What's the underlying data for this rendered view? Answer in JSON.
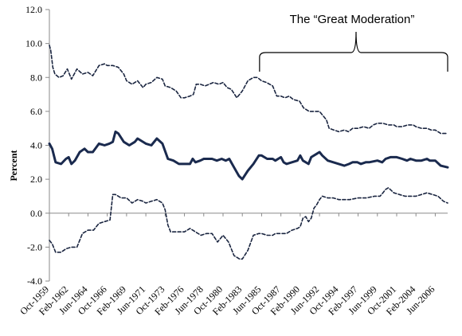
{
  "chart_data": {
    "type": "line",
    "ylabel": "Percent",
    "ylim": [
      -4.0,
      12.0
    ],
    "yticks": [
      "-4.0",
      "-2.0",
      "0.0",
      "2.0",
      "4.0",
      "6.0",
      "8.0",
      "10.0",
      "12.0"
    ],
    "xlim": [
      "Oct-1959",
      "Dec-2007"
    ],
    "xticks": [
      "Oct-1959",
      "Feb-1962",
      "Jun-1964",
      "Oct-1966",
      "Feb-1969",
      "Jun-1971",
      "Oct-1973",
      "Feb-1976",
      "Jun-1978",
      "Oct-1980",
      "Feb-1983",
      "Jun-1985",
      "Oct-1987",
      "Feb-1990",
      "Jun-1992",
      "Oct-1994",
      "Feb-1997",
      "Jun-1999",
      "Oct-2001",
      "Feb-2004",
      "Jun-2006"
    ],
    "grid": false,
    "annotation": {
      "text": "The “Great Moderation”",
      "span": [
        "Mar-1985",
        "Dec-2007"
      ]
    },
    "series": [
      {
        "style": "dashed",
        "color": "#1a2540",
        "points": [
          [
            "Oct-1959",
            9.9
          ],
          [
            "Dec-1959",
            9.6
          ],
          [
            "Mar-1960",
            8.6
          ],
          [
            "Jun-1960",
            8.2
          ],
          [
            "Dec-1960",
            8.0
          ],
          [
            "Jun-1961",
            8.1
          ],
          [
            "Dec-1961",
            8.5
          ],
          [
            "Jun-1962",
            7.9
          ],
          [
            "Feb-1963",
            8.5
          ],
          [
            "Oct-1963",
            8.2
          ],
          [
            "Jun-1964",
            8.3
          ],
          [
            "Jan-1965",
            8.1
          ],
          [
            "Oct-1965",
            8.7
          ],
          [
            "Jun-1966",
            8.8
          ],
          [
            "Oct-1966",
            8.7
          ],
          [
            "Jun-1967",
            8.7
          ],
          [
            "Feb-1968",
            8.6
          ],
          [
            "Oct-1968",
            8.2
          ],
          [
            "Feb-1969",
            7.8
          ],
          [
            "Oct-1969",
            7.6
          ],
          [
            "Jun-1970",
            7.8
          ],
          [
            "Feb-1971",
            7.4
          ],
          [
            "Jun-1971",
            7.6
          ],
          [
            "Feb-1972",
            7.7
          ],
          [
            "Oct-1972",
            8.0
          ],
          [
            "Jun-1973",
            7.9
          ],
          [
            "Oct-1973",
            7.5
          ],
          [
            "Jun-1974",
            7.4
          ],
          [
            "Feb-1975",
            7.2
          ],
          [
            "Sep-1975",
            6.8
          ],
          [
            "Feb-1976",
            6.8
          ],
          [
            "Oct-1976",
            6.9
          ],
          [
            "Mar-1977",
            7.0
          ],
          [
            "Jul-1977",
            7.6
          ],
          [
            "Jan-1978",
            7.6
          ],
          [
            "Aug-1978",
            7.5
          ],
          [
            "Feb-1979",
            7.6
          ],
          [
            "Aug-1979",
            7.7
          ],
          [
            "Apr-1980",
            7.6
          ],
          [
            "Oct-1980",
            7.7
          ],
          [
            "Apr-1981",
            7.4
          ],
          [
            "Oct-1981",
            7.3
          ],
          [
            "Jun-1982",
            6.8
          ],
          [
            "Feb-1983",
            7.2
          ],
          [
            "Oct-1983",
            7.8
          ],
          [
            "Jun-1984",
            8.0
          ],
          [
            "Dec-1984",
            8.0
          ],
          [
            "Jun-1985",
            7.8
          ],
          [
            "Jan-1986",
            7.7
          ],
          [
            "Oct-1986",
            7.5
          ],
          [
            "Apr-1987",
            6.9
          ],
          [
            "Oct-1987",
            6.9
          ],
          [
            "Apr-1988",
            6.8
          ],
          [
            "Oct-1988",
            6.9
          ],
          [
            "Apr-1989",
            6.7
          ],
          [
            "Jan-1990",
            6.6
          ],
          [
            "Jul-1990",
            6.2
          ],
          [
            "Mar-1991",
            6.0
          ],
          [
            "Jun-1992",
            6.0
          ],
          [
            "Apr-1993",
            5.5
          ],
          [
            "Aug-1993",
            5.0
          ],
          [
            "Oct-1994",
            4.8
          ],
          [
            "Jun-1995",
            4.9
          ],
          [
            "Dec-1995",
            4.8
          ],
          [
            "Jun-1996",
            5.0
          ],
          [
            "Feb-1997",
            5.0
          ],
          [
            "Oct-1997",
            5.1
          ],
          [
            "Jun-1998",
            5.0
          ],
          [
            "Dec-1998",
            5.2
          ],
          [
            "Jun-1999",
            5.3
          ],
          [
            "Feb-2000",
            5.3
          ],
          [
            "Oct-2000",
            5.2
          ],
          [
            "Jun-2001",
            5.2
          ],
          [
            "Oct-2001",
            5.1
          ],
          [
            "Jun-2002",
            5.1
          ],
          [
            "Feb-2003",
            5.2
          ],
          [
            "Oct-2003",
            5.2
          ],
          [
            "Feb-2004",
            5.1
          ],
          [
            "Oct-2004",
            5.0
          ],
          [
            "Jun-2005",
            5.0
          ],
          [
            "Dec-2005",
            4.9
          ],
          [
            "Jun-2006",
            4.9
          ],
          [
            "Feb-2007",
            4.7
          ],
          [
            "Dec-2007",
            4.7
          ]
        ]
      },
      {
        "style": "solid",
        "color": "#1a2a4e",
        "points": [
          [
            "Oct-1959",
            4.1
          ],
          [
            "Feb-1960",
            3.8
          ],
          [
            "Jul-1960",
            3.0
          ],
          [
            "Mar-1961",
            2.9
          ],
          [
            "Oct-1961",
            3.2
          ],
          [
            "Feb-1962",
            3.3
          ],
          [
            "Jun-1962",
            2.9
          ],
          [
            "Nov-1962",
            3.1
          ],
          [
            "Jun-1963",
            3.6
          ],
          [
            "Jan-1964",
            3.8
          ],
          [
            "Jun-1964",
            3.6
          ],
          [
            "Jan-1965",
            3.6
          ],
          [
            "Oct-1965",
            4.1
          ],
          [
            "Jun-1966",
            4.0
          ],
          [
            "Jan-1967",
            4.1
          ],
          [
            "Jun-1967",
            4.2
          ],
          [
            "Oct-1967",
            4.8
          ],
          [
            "Feb-1968",
            4.7
          ],
          [
            "Oct-1968",
            4.2
          ],
          [
            "Jun-1969",
            4.0
          ],
          [
            "Feb-1970",
            4.2
          ],
          [
            "Jun-1970",
            4.4
          ],
          [
            "Jun-1971",
            4.1
          ],
          [
            "Feb-1972",
            4.0
          ],
          [
            "Oct-1972",
            4.4
          ],
          [
            "Jun-1973",
            4.1
          ],
          [
            "Feb-1974",
            3.2
          ],
          [
            "Oct-1974",
            3.1
          ],
          [
            "Jun-1975",
            2.9
          ],
          [
            "Feb-1976",
            2.9
          ],
          [
            "Oct-1976",
            2.9
          ],
          [
            "Feb-1977",
            3.2
          ],
          [
            "Jun-1977",
            3.0
          ],
          [
            "Jan-1978",
            3.1
          ],
          [
            "Jun-1978",
            3.2
          ],
          [
            "Jan-1979",
            3.2
          ],
          [
            "Jun-1979",
            3.2
          ],
          [
            "Jan-1980",
            3.1
          ],
          [
            "Aug-1980",
            3.2
          ],
          [
            "Feb-1981",
            3.1
          ],
          [
            "Jul-1981",
            3.2
          ],
          [
            "Feb-1982",
            2.7
          ],
          [
            "Sep-1982",
            2.2
          ],
          [
            "Feb-1983",
            2.0
          ],
          [
            "Oct-1983",
            2.5
          ],
          [
            "Jun-1984",
            2.9
          ],
          [
            "Feb-1985",
            3.4
          ],
          [
            "Jun-1985",
            3.4
          ],
          [
            "Feb-1986",
            3.2
          ],
          [
            "Oct-1986",
            3.2
          ],
          [
            "Feb-1987",
            3.1
          ],
          [
            "Oct-1987",
            3.3
          ],
          [
            "Feb-1988",
            3.0
          ],
          [
            "Jun-1988",
            2.9
          ],
          [
            "Feb-1989",
            3.0
          ],
          [
            "Oct-1989",
            3.1
          ],
          [
            "Feb-1990",
            3.4
          ],
          [
            "Jun-1990",
            3.1
          ],
          [
            "Feb-1991",
            2.9
          ],
          [
            "Jun-1991",
            3.3
          ],
          [
            "Feb-1992",
            3.5
          ],
          [
            "Jun-1992",
            3.6
          ],
          [
            "Oct-1992",
            3.4
          ],
          [
            "Jun-1993",
            3.1
          ],
          [
            "Feb-1994",
            3.0
          ],
          [
            "Oct-1994",
            2.9
          ],
          [
            "Jun-1995",
            2.8
          ],
          [
            "Jan-1996",
            2.9
          ],
          [
            "Jun-1996",
            3.0
          ],
          [
            "Jan-1997",
            3.0
          ],
          [
            "Jun-1997",
            2.9
          ],
          [
            "Jan-1998",
            3.0
          ],
          [
            "Jun-1998",
            3.0
          ],
          [
            "Jun-1999",
            3.1
          ],
          [
            "Jan-2000",
            3.0
          ],
          [
            "Jun-2000",
            3.2
          ],
          [
            "Jan-2001",
            3.3
          ],
          [
            "Jun-2001",
            3.3
          ],
          [
            "Oct-2001",
            3.3
          ],
          [
            "Jun-2002",
            3.2
          ],
          [
            "Jan-2003",
            3.1
          ],
          [
            "Jun-2003",
            3.2
          ],
          [
            "Feb-2004",
            3.1
          ],
          [
            "Oct-2004",
            3.1
          ],
          [
            "Jun-2005",
            3.2
          ],
          [
            "Oct-2005",
            3.1
          ],
          [
            "Jun-2006",
            3.1
          ],
          [
            "Feb-2007",
            2.8
          ],
          [
            "Dec-2007",
            2.7
          ]
        ]
      },
      {
        "style": "dashed",
        "color": "#1a2540",
        "points": [
          [
            "Oct-1959",
            -1.6
          ],
          [
            "Feb-1960",
            -1.8
          ],
          [
            "Jul-1960",
            -2.3
          ],
          [
            "Mar-1961",
            -2.3
          ],
          [
            "Oct-1961",
            -2.1
          ],
          [
            "Jun-1962",
            -2.0
          ],
          [
            "Feb-1963",
            -2.0
          ],
          [
            "Oct-1963",
            -1.2
          ],
          [
            "Jun-1964",
            -1.0
          ],
          [
            "Feb-1965",
            -1.0
          ],
          [
            "Oct-1965",
            -0.6
          ],
          [
            "Jun-1966",
            -0.5
          ],
          [
            "Feb-1967",
            -0.4
          ],
          [
            "Jun-1967",
            1.1
          ],
          [
            "Oct-1967",
            1.1
          ],
          [
            "Jun-1968",
            0.9
          ],
          [
            "Feb-1969",
            0.9
          ],
          [
            "Oct-1969",
            0.6
          ],
          [
            "Jun-1970",
            0.8
          ],
          [
            "Feb-1971",
            0.7
          ],
          [
            "Jun-1971",
            0.6
          ],
          [
            "Feb-1972",
            0.7
          ],
          [
            "Oct-1972",
            0.8
          ],
          [
            "Jun-1973",
            0.6
          ],
          [
            "Oct-1973",
            0.2
          ],
          [
            "Feb-1974",
            -0.7
          ],
          [
            "Jun-1974",
            -1.1
          ],
          [
            "Feb-1975",
            -1.1
          ],
          [
            "Oct-1975",
            -1.1
          ],
          [
            "Feb-1976",
            -1.1
          ],
          [
            "Oct-1976",
            -0.9
          ],
          [
            "Jun-1977",
            -1.1
          ],
          [
            "Feb-1978",
            -1.3
          ],
          [
            "Oct-1978",
            -1.2
          ],
          [
            "Jun-1979",
            -1.2
          ],
          [
            "Feb-1980",
            -1.7
          ],
          [
            "Oct-1980",
            -1.3
          ],
          [
            "Jun-1981",
            -1.7
          ],
          [
            "Feb-1982",
            -2.5
          ],
          [
            "Oct-1982",
            -2.7
          ],
          [
            "Feb-1983",
            -2.7
          ],
          [
            "Oct-1983",
            -2.2
          ],
          [
            "Jun-1984",
            -1.3
          ],
          [
            "Feb-1985",
            -1.2
          ],
          [
            "Jun-1985",
            -1.2
          ],
          [
            "Feb-1986",
            -1.3
          ],
          [
            "Oct-1986",
            -1.3
          ],
          [
            "Feb-1987",
            -1.2
          ],
          [
            "Jun-1988",
            -1.2
          ],
          [
            "Feb-1989",
            -1.0
          ],
          [
            "Oct-1989",
            -0.9
          ],
          [
            "Feb-1990",
            -0.8
          ],
          [
            "Jun-1990",
            -0.3
          ],
          [
            "Oct-1990",
            -0.2
          ],
          [
            "Feb-1991",
            -0.5
          ],
          [
            "Jun-1991",
            -0.3
          ],
          [
            "Oct-1991",
            0.3
          ],
          [
            "Feb-1992",
            0.5
          ],
          [
            "Jun-1992",
            0.8
          ],
          [
            "Oct-1992",
            1.0
          ],
          [
            "Jun-1993",
            0.9
          ],
          [
            "Feb-1994",
            0.9
          ],
          [
            "Oct-1994",
            0.8
          ],
          [
            "Jun-1995",
            0.8
          ],
          [
            "Feb-1996",
            0.8
          ],
          [
            "Feb-1997",
            0.9
          ],
          [
            "Feb-1998",
            0.9
          ],
          [
            "Feb-1999",
            1.0
          ],
          [
            "Oct-1999",
            1.0
          ],
          [
            "Feb-2000",
            1.2
          ],
          [
            "Jun-2000",
            1.4
          ],
          [
            "Oct-2000",
            1.5
          ],
          [
            "Jun-2001",
            1.2
          ],
          [
            "Feb-2002",
            1.1
          ],
          [
            "Oct-2002",
            1.0
          ],
          [
            "Jun-2003",
            1.0
          ],
          [
            "Feb-2004",
            1.0
          ],
          [
            "Oct-2004",
            1.1
          ],
          [
            "Jun-2005",
            1.2
          ],
          [
            "Feb-2006",
            1.1
          ],
          [
            "Oct-2006",
            1.0
          ],
          [
            "Jun-2007",
            0.7
          ],
          [
            "Dec-2007",
            0.6
          ]
        ]
      }
    ]
  }
}
